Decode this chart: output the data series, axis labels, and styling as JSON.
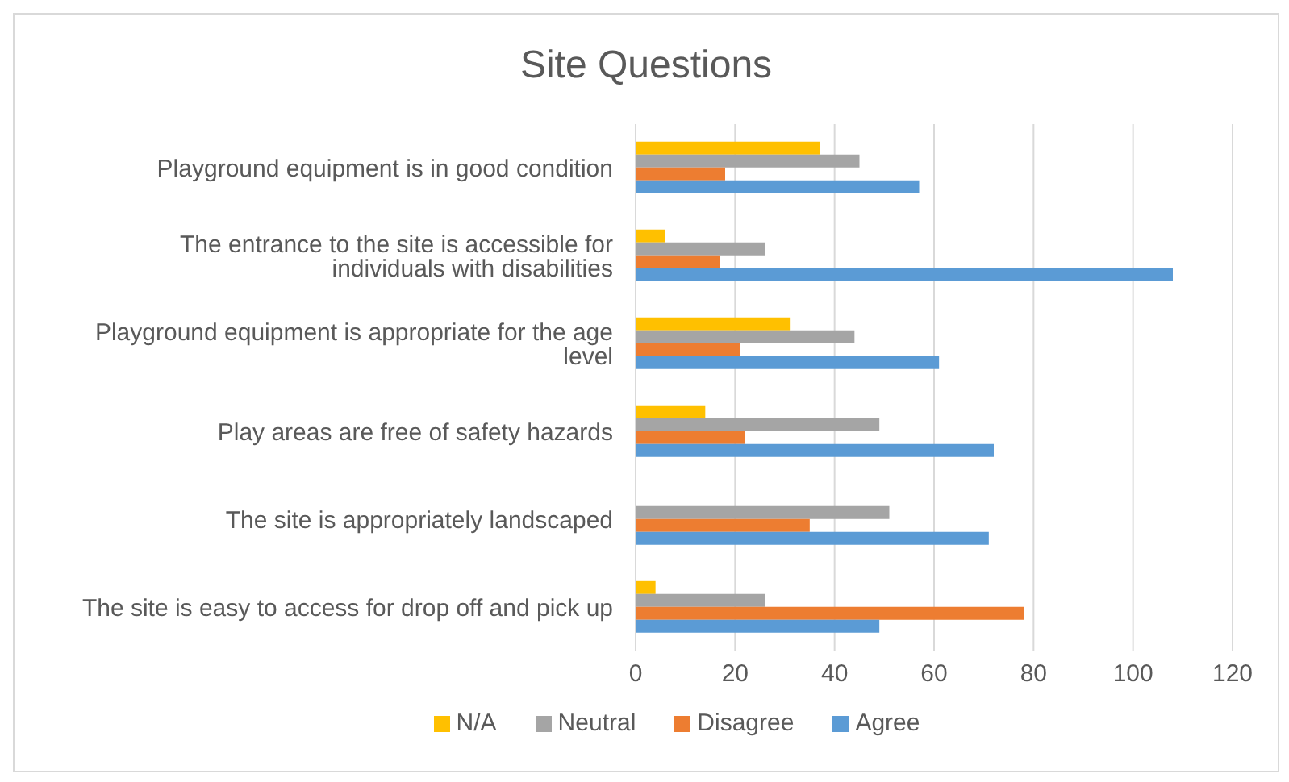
{
  "chart_data": {
    "type": "bar",
    "orientation": "horizontal",
    "title": "Site Questions",
    "categories": [
      "Playground equipment is in good condition",
      "The entrance to the site is accessible for individuals with disabilities",
      "Playground equipment is appropriate for the age level",
      "Play areas are free of safety hazards",
      "The site is appropriately landscaped",
      "The site is easy to access for drop off and pick up"
    ],
    "series": [
      {
        "name": "N/A",
        "color": "#ffc000",
        "values": [
          37,
          6,
          31,
          14,
          0,
          4
        ]
      },
      {
        "name": "Neutral",
        "color": "#a5a5a5",
        "values": [
          45,
          26,
          44,
          49,
          51,
          26
        ]
      },
      {
        "name": "Disagree",
        "color": "#ed7d31",
        "values": [
          18,
          17,
          21,
          22,
          35,
          78
        ]
      },
      {
        "name": "Agree",
        "color": "#5b9bd5",
        "values": [
          57,
          108,
          61,
          72,
          71,
          49
        ]
      }
    ],
    "xlim": [
      0,
      120
    ],
    "xticks": [
      0,
      20,
      40,
      60,
      80,
      100,
      120
    ],
    "grid": "x",
    "legend": "bottom"
  }
}
